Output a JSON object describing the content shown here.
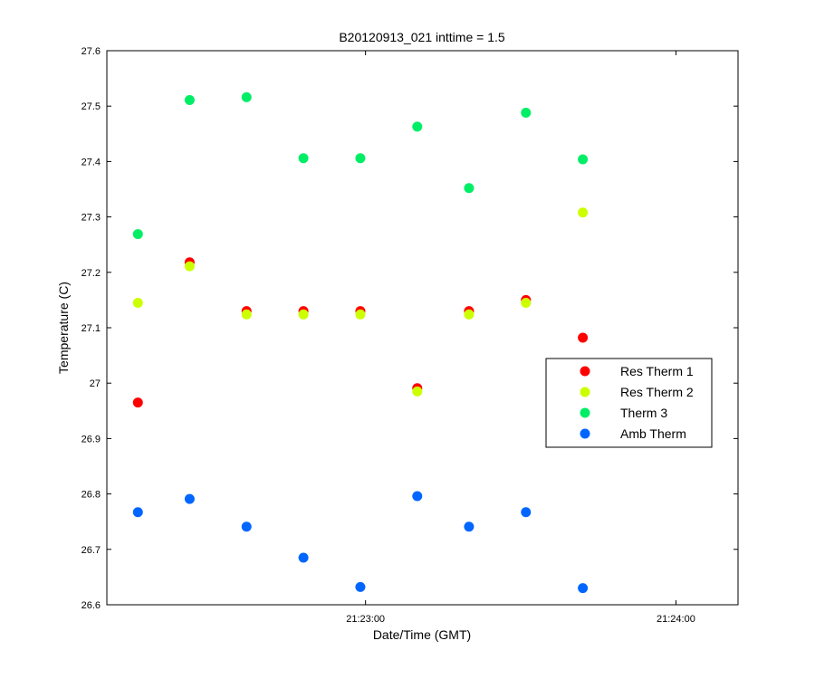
{
  "chart_data": {
    "type": "scatter",
    "title": "B20120913_021 inttime = 1.5",
    "xlabel": "Date/Time (GMT)",
    "ylabel": "Temperature (C)",
    "ylim": [
      26.6,
      27.6
    ],
    "yticks": [
      26.6,
      26.7,
      26.8,
      26.9,
      27,
      27.1,
      27.2,
      27.3,
      27.4,
      27.5,
      27.6
    ],
    "ytick_labels": [
      "26.6",
      "26.7",
      "26.8",
      "26.9",
      "27",
      "27.1",
      "27.2",
      "27.3",
      "27.4",
      "27.5",
      "27.6"
    ],
    "xlim": [
      "21:22:10",
      "21:24:12"
    ],
    "xticks": [
      "21:23:00",
      "21:24:00"
    ],
    "xtick_labels": [
      "21:23:00",
      "21:24:00"
    ],
    "grid": false,
    "legend_position": "right",
    "series": [
      {
        "name": "Res Therm 1",
        "color": "#ff0000",
        "points": [
          {
            "x": "21:22:16",
            "y": 26.965
          },
          {
            "x": "21:22:26",
            "y": 27.218
          },
          {
            "x": "21:22:37",
            "y": 27.13
          },
          {
            "x": "21:22:48",
            "y": 27.13
          },
          {
            "x": "21:22:59",
            "y": 27.13
          },
          {
            "x": "21:23:10",
            "y": 26.991
          },
          {
            "x": "21:23:20",
            "y": 27.13
          },
          {
            "x": "21:23:31",
            "y": 27.15
          },
          {
            "x": "21:23:42",
            "y": 27.082
          }
        ]
      },
      {
        "name": "Res Therm 2",
        "color": "#ccff00",
        "points": [
          {
            "x": "21:22:16",
            "y": 27.145
          },
          {
            "x": "21:22:26",
            "y": 27.211
          },
          {
            "x": "21:22:37",
            "y": 27.124
          },
          {
            "x": "21:22:48",
            "y": 27.124
          },
          {
            "x": "21:22:59",
            "y": 27.124
          },
          {
            "x": "21:23:10",
            "y": 26.985
          },
          {
            "x": "21:23:20",
            "y": 27.124
          },
          {
            "x": "21:23:31",
            "y": 27.145
          },
          {
            "x": "21:23:42",
            "y": 27.308
          }
        ]
      },
      {
        "name": "Therm 3",
        "color": "#00ee66",
        "points": [
          {
            "x": "21:22:16",
            "y": 27.269
          },
          {
            "x": "21:22:26",
            "y": 27.511
          },
          {
            "x": "21:22:37",
            "y": 27.516
          },
          {
            "x": "21:22:48",
            "y": 27.406
          },
          {
            "x": "21:22:59",
            "y": 27.406
          },
          {
            "x": "21:23:10",
            "y": 27.463
          },
          {
            "x": "21:23:20",
            "y": 27.352
          },
          {
            "x": "21:23:31",
            "y": 27.488
          },
          {
            "x": "21:23:42",
            "y": 27.404
          }
        ]
      },
      {
        "name": "Amb Therm",
        "color": "#0066ff",
        "points": [
          {
            "x": "21:22:16",
            "y": 26.767
          },
          {
            "x": "21:22:26",
            "y": 26.791
          },
          {
            "x": "21:22:37",
            "y": 26.741
          },
          {
            "x": "21:22:48",
            "y": 26.685
          },
          {
            "x": "21:22:59",
            "y": 26.632
          },
          {
            "x": "21:23:10",
            "y": 26.796
          },
          {
            "x": "21:23:20",
            "y": 26.741
          },
          {
            "x": "21:23:31",
            "y": 26.767
          },
          {
            "x": "21:23:42",
            "y": 26.63
          }
        ]
      }
    ]
  }
}
